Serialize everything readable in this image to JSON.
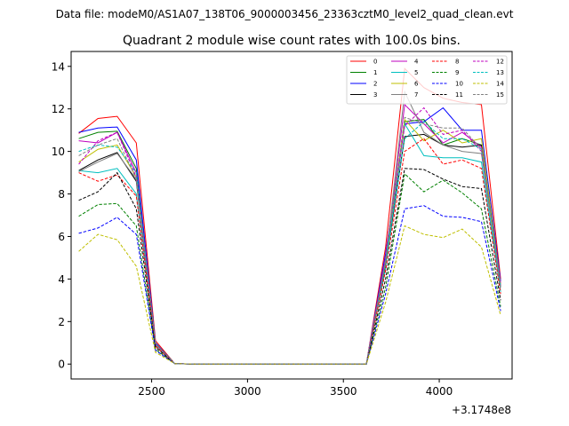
{
  "figure": {
    "suptitle": "Data file: modeM0/AS1A07_138T06_9000003456_23363cztM0_level2_quad_clean.evt"
  },
  "chart_data": {
    "type": "line",
    "title": "Quadrant 2 module wise count rates with 100.0s bins.",
    "xlabel": "",
    "ylabel": "",
    "x_offset_label": "+3.1748e8",
    "xlim": [
      2080,
      4380
    ],
    "ylim": [
      -0.7,
      14.7
    ],
    "xticks": [
      2500,
      3000,
      3500,
      4000
    ],
    "xtick_labels": [
      "2500",
      "3000",
      "3500",
      "4000"
    ],
    "yticks": [
      0,
      2,
      4,
      6,
      8,
      10,
      12,
      14
    ],
    "ytick_labels": [
      "0",
      "2",
      "4",
      "6",
      "8",
      "10",
      "12",
      "14"
    ],
    "grid": false,
    "legend_position": "top-right",
    "x": [
      2120,
      2220,
      2320,
      2420,
      2520,
      2620,
      2720,
      2820,
      2920,
      3020,
      3120,
      3220,
      3320,
      3420,
      3520,
      3620,
      3720,
      3820,
      3920,
      4020,
      4120,
      4220,
      4320
    ],
    "series": [
      {
        "name": "0",
        "color": "#ff0000",
        "style": "solid",
        "values": [
          10.85,
          11.55,
          11.65,
          10.4,
          1.1,
          0.02,
          0,
          0,
          0,
          0,
          0,
          0,
          0,
          0,
          0,
          0,
          5.5,
          13.9,
          13.0,
          12.5,
          12.3,
          12.2,
          4.0
        ]
      },
      {
        "name": "1",
        "color": "#008000",
        "style": "solid",
        "values": [
          10.6,
          10.9,
          10.95,
          9.2,
          1.0,
          0.02,
          0,
          0,
          0,
          0,
          0,
          0,
          0,
          0,
          0,
          0,
          5.0,
          11.4,
          11.5,
          10.3,
          10.6,
          10.3,
          3.7
        ]
      },
      {
        "name": "2",
        "color": "#0000ff",
        "style": "solid",
        "values": [
          10.9,
          11.1,
          11.15,
          9.6,
          1.0,
          0.02,
          0,
          0,
          0,
          0,
          0,
          0,
          0,
          0,
          0,
          0,
          5.2,
          11.3,
          11.4,
          12.05,
          11.0,
          11.0,
          3.9
        ]
      },
      {
        "name": "3",
        "color": "#000000",
        "style": "solid",
        "values": [
          9.1,
          9.6,
          9.95,
          8.6,
          0.9,
          0.02,
          0,
          0,
          0,
          0,
          0,
          0,
          0,
          0,
          0,
          0,
          4.6,
          10.7,
          10.8,
          10.3,
          10.2,
          10.3,
          3.6
        ]
      },
      {
        "name": "4",
        "color": "#bf00bf",
        "style": "solid",
        "values": [
          10.5,
          10.4,
          10.9,
          9.0,
          0.95,
          0.02,
          0,
          0,
          0,
          0,
          0,
          0,
          0,
          0,
          0,
          0,
          5.0,
          12.2,
          11.3,
          10.4,
          10.9,
          10.2,
          3.8
        ]
      },
      {
        "name": "5",
        "color": "#00bfbf",
        "style": "solid",
        "values": [
          9.1,
          9.0,
          9.2,
          8.0,
          0.9,
          0.02,
          0,
          0,
          0,
          0,
          0,
          0,
          0,
          0,
          0,
          0,
          4.5,
          11.3,
          9.8,
          9.7,
          9.7,
          9.5,
          3.4
        ]
      },
      {
        "name": "6",
        "color": "#bfbf00",
        "style": "solid",
        "values": [
          9.5,
          10.1,
          10.3,
          8.8,
          0.95,
          0.02,
          0,
          0,
          0,
          0,
          0,
          0,
          0,
          0,
          0,
          0,
          4.8,
          11.5,
          10.5,
          11.0,
          10.4,
          10.6,
          3.7
        ]
      },
      {
        "name": "7",
        "color": "#808080",
        "style": "solid",
        "values": [
          9.05,
          9.5,
          9.9,
          8.7,
          0.9,
          0.02,
          0,
          0,
          0,
          0,
          0,
          0,
          0,
          0,
          0,
          0,
          4.8,
          12.8,
          10.9,
          10.3,
          10.0,
          9.9,
          3.6
        ]
      },
      {
        "name": "8",
        "color": "#ff0000",
        "style": "dashed",
        "values": [
          9.0,
          8.6,
          8.9,
          7.9,
          0.85,
          0.02,
          0,
          0,
          0,
          0,
          0,
          0,
          0,
          0,
          0,
          0,
          4.4,
          10.0,
          10.6,
          9.4,
          9.6,
          9.2,
          3.3
        ]
      },
      {
        "name": "9",
        "color": "#008000",
        "style": "dashed",
        "values": [
          6.95,
          7.5,
          7.55,
          6.5,
          0.7,
          0.02,
          0,
          0,
          0,
          0,
          0,
          0,
          0,
          0,
          0,
          0,
          3.6,
          8.95,
          8.1,
          8.65,
          8.05,
          7.3,
          2.7
        ]
      },
      {
        "name": "10",
        "color": "#0000ff",
        "style": "dashed",
        "values": [
          6.15,
          6.4,
          6.9,
          6.1,
          0.65,
          0.02,
          0,
          0,
          0,
          0,
          0,
          0,
          0,
          0,
          0,
          0,
          3.3,
          7.3,
          7.45,
          6.95,
          6.9,
          6.7,
          2.5
        ]
      },
      {
        "name": "11",
        "color": "#000000",
        "style": "dashed",
        "values": [
          7.7,
          8.1,
          9.0,
          7.3,
          0.8,
          0.02,
          0,
          0,
          0,
          0,
          0,
          0,
          0,
          0,
          0,
          0,
          4.0,
          9.2,
          9.15,
          8.7,
          8.35,
          8.25,
          3.0
        ]
      },
      {
        "name": "12",
        "color": "#bf00bf",
        "style": "dashed",
        "values": [
          9.4,
          10.5,
          10.9,
          8.8,
          0.95,
          0.02,
          0,
          0,
          0,
          0,
          0,
          0,
          0,
          0,
          0,
          0,
          5.0,
          11.2,
          12.05,
          10.8,
          11.0,
          10.0,
          3.7
        ]
      },
      {
        "name": "13",
        "color": "#00bfbf",
        "style": "dashed",
        "values": [
          10.0,
          10.3,
          10.2,
          9.0,
          0.95,
          0.02,
          0,
          0,
          0,
          0,
          0,
          0,
          0,
          0,
          0,
          0,
          4.9,
          10.6,
          11.4,
          10.6,
          10.6,
          10.1,
          3.6
        ]
      },
      {
        "name": "14",
        "color": "#bfbf00",
        "style": "dashed",
        "values": [
          5.3,
          6.1,
          5.85,
          4.6,
          0.55,
          0.02,
          0,
          0,
          0,
          0,
          0,
          0,
          0,
          0,
          0,
          0,
          2.9,
          6.5,
          6.1,
          5.95,
          6.35,
          5.5,
          2.3
        ]
      },
      {
        "name": "15",
        "color": "#808080",
        "style": "dashed",
        "values": [
          9.8,
          10.3,
          10.6,
          8.7,
          0.95,
          0.02,
          0,
          0,
          0,
          0,
          0,
          0,
          0,
          0,
          0,
          0,
          4.9,
          11.6,
          11.3,
          11.1,
          11.1,
          10.1,
          3.6
        ]
      }
    ]
  }
}
